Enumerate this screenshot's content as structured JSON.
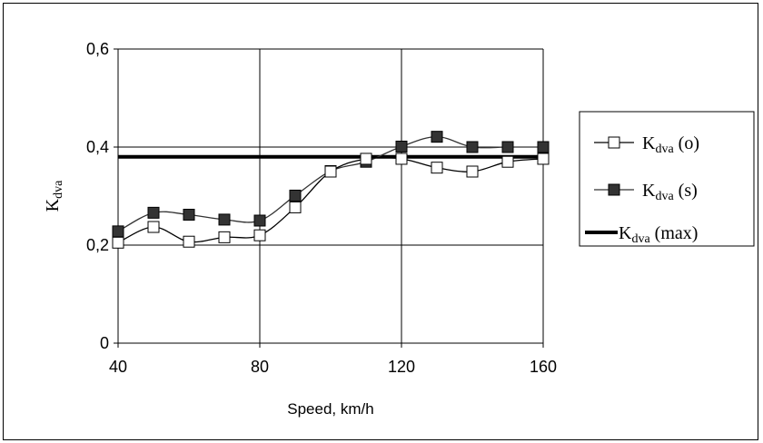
{
  "chart_data": {
    "type": "line",
    "xlabel": "Speed, km/h",
    "ylabel": {
      "main": "K",
      "sub": "dva"
    },
    "xlim": [
      40,
      160
    ],
    "ylim": [
      0,
      0.6
    ],
    "xticks": [
      40,
      80,
      120,
      160
    ],
    "xtick_labels": [
      "40",
      "80",
      "120",
      "160"
    ],
    "yticks": [
      0,
      0.2,
      0.4,
      0.6
    ],
    "ytick_labels": [
      "0",
      "0,2",
      "0,4",
      "0,6"
    ],
    "grid": true,
    "legend_position": "right",
    "x": [
      40,
      50,
      60,
      70,
      80,
      90,
      100,
      110,
      120,
      130,
      140,
      150,
      160
    ],
    "series": [
      {
        "name": "Kdva (o)",
        "legend": {
          "main": "K",
          "sub": "dva",
          "suffix": " (o)"
        },
        "marker": "open-square",
        "color": "#000000",
        "values": [
          0.205,
          0.237,
          0.207,
          0.216,
          0.22,
          0.277,
          0.35,
          0.376,
          0.376,
          0.358,
          0.35,
          0.37,
          0.376
        ]
      },
      {
        "name": "Kdva (s)",
        "legend": {
          "main": "K",
          "sub": "dva",
          "suffix": " (s)"
        },
        "marker": "filled-square",
        "color": "#333333",
        "values": [
          0.228,
          0.266,
          0.262,
          0.252,
          0.25,
          0.301,
          0.351,
          0.37,
          0.401,
          0.421,
          0.4,
          0.4,
          0.4
        ]
      },
      {
        "name": "Kdva (max)",
        "legend": {
          "main": "K",
          "sub": "dva",
          "suffix": " (max)"
        },
        "marker": "none",
        "color": "#000000",
        "values": [
          0.38,
          0.38,
          0.38,
          0.38,
          0.38,
          0.38,
          0.38,
          0.38,
          0.38,
          0.38,
          0.38,
          0.38,
          0.38
        ]
      }
    ]
  }
}
